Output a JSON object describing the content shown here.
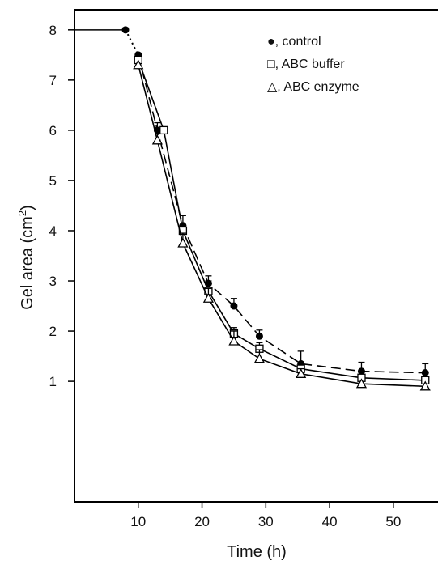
{
  "chart_data": {
    "type": "line",
    "title": "",
    "xlabel": "Time (h)",
    "ylabel": "Gel area (cm",
    "ylabel_sup": "2",
    "ylabel_end": ")",
    "xlim": [
      0,
      57
    ],
    "ylim": [
      -1.4,
      8.4
    ],
    "x_ticks": [
      10,
      20,
      30,
      40,
      50
    ],
    "y_ticks": [
      1,
      2,
      3,
      4,
      5,
      6,
      7,
      8
    ],
    "grid": false,
    "legend_position": "top-right",
    "initial_value": {
      "x_start": 0,
      "x": 8,
      "y": 8
    },
    "series": [
      {
        "name": "control",
        "legend_text": "●, control",
        "marker": "filled-circle",
        "dash": "12,6",
        "points": [
          {
            "x": 10,
            "y": 7.5,
            "err": 0
          },
          {
            "x": 13,
            "y": 6.0,
            "err": 0.15
          },
          {
            "x": 17,
            "y": 4.1,
            "err": 0.2
          },
          {
            "x": 21,
            "y": 2.95,
            "err": 0.15
          },
          {
            "x": 25,
            "y": 2.5,
            "err": 0.15
          },
          {
            "x": 29,
            "y": 1.9,
            "err": 0.12
          },
          {
            "x": 35.5,
            "y": 1.35,
            "err": 0.25
          },
          {
            "x": 45,
            "y": 1.2,
            "err": 0.18
          },
          {
            "x": 55,
            "y": 1.17,
            "err": 0.18
          }
        ]
      },
      {
        "name": "ABC buffer",
        "legend_text": "□, ABC buffer",
        "marker": "open-square",
        "dash": "",
        "points": [
          {
            "x": 10,
            "y": 7.4,
            "err": 0
          },
          {
            "x": 14,
            "y": 6.0,
            "err": 0
          },
          {
            "x": 17,
            "y": 4.0,
            "err": 0
          },
          {
            "x": 21,
            "y": 2.8,
            "err": 0.2
          },
          {
            "x": 25,
            "y": 1.95,
            "err": 0.12
          },
          {
            "x": 29,
            "y": 1.65,
            "err": 0.12
          },
          {
            "x": 35.5,
            "y": 1.25,
            "err": 0
          },
          {
            "x": 45,
            "y": 1.07,
            "err": 0
          },
          {
            "x": 55,
            "y": 1.02,
            "err": 0
          }
        ]
      },
      {
        "name": "ABC enzyme",
        "legend_text": "△, ABC enzyme",
        "marker": "open-triangle",
        "dash": "",
        "points": [
          {
            "x": 10,
            "y": 7.3,
            "err": 0
          },
          {
            "x": 13,
            "y": 5.8,
            "err": 0.2
          },
          {
            "x": 17,
            "y": 3.75,
            "err": 0.2
          },
          {
            "x": 21,
            "y": 2.65,
            "err": 0.2
          },
          {
            "x": 25,
            "y": 1.8,
            "err": 0.2
          },
          {
            "x": 29,
            "y": 1.45,
            "err": 0.18
          },
          {
            "x": 35.5,
            "y": 1.15,
            "err": 0.1
          },
          {
            "x": 45,
            "y": 0.95,
            "err": 0
          },
          {
            "x": 55,
            "y": 0.9,
            "err": 0
          }
        ]
      }
    ]
  }
}
